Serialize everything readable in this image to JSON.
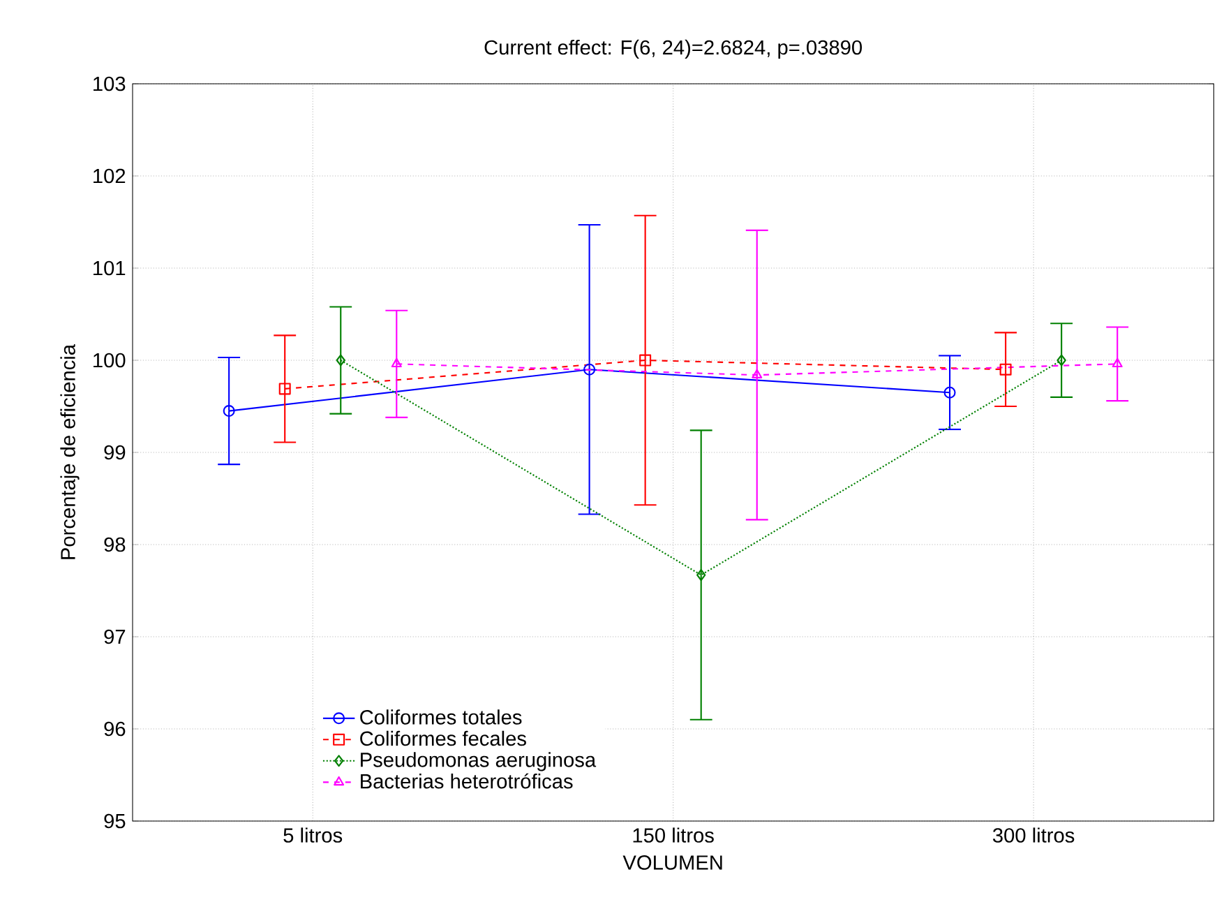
{
  "chart_data": {
    "type": "line",
    "title": "Current effect: F(6, 24)=2.6824, p=.03890",
    "xlabel": "VOLUMEN",
    "ylabel": "Porcentaje de eficiencia",
    "categories": [
      "5 litros",
      "150 litros",
      "300 litros"
    ],
    "ylim": [
      95,
      103
    ],
    "yticks": [
      95,
      96,
      97,
      98,
      99,
      100,
      101,
      102,
      103
    ],
    "grid": true,
    "legend": "bottom left",
    "series": [
      {
        "name": "Coliformes totales",
        "color": "#0000ff",
        "marker": "circle",
        "line_style": "solid",
        "values": [
          99.45,
          99.9,
          99.65
        ],
        "errors": [
          0.58,
          1.57,
          0.4
        ]
      },
      {
        "name": "Coliformes fecales",
        "color": "#ff0000",
        "marker": "square",
        "line_style": "dashed",
        "values": [
          99.69,
          100.0,
          99.9
        ],
        "errors": [
          0.58,
          1.57,
          0.4
        ]
      },
      {
        "name": "Pseudomonas aeruginosa",
        "color": "#008000",
        "marker": "diamond",
        "line_style": "dotted",
        "values": [
          100.0,
          97.67,
          100.0
        ],
        "errors": [
          0.58,
          1.57,
          0.4
        ]
      },
      {
        "name": "Bacterias heterotróficas",
        "color": "#ff00ff",
        "marker": "triangle",
        "line_style": "dashed",
        "values": [
          99.96,
          99.84,
          99.96
        ],
        "errors": [
          0.58,
          1.57,
          0.4
        ]
      }
    ]
  }
}
